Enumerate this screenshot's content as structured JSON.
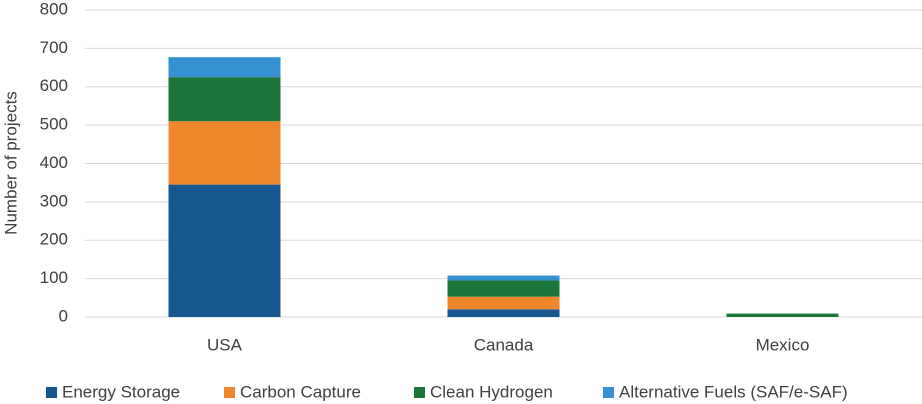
{
  "chart_data": {
    "type": "stacked-bar",
    "y_label": "Number of projects",
    "categories": [
      "USA",
      "Canada",
      "Mexico"
    ],
    "series": [
      {
        "name": "Energy Storage",
        "color": "#17578f",
        "values": [
          345,
          20,
          0
        ]
      },
      {
        "name": "Carbon Capture",
        "color": "#f0862b",
        "values": [
          165,
          33,
          0
        ]
      },
      {
        "name": "Clean Hydrogen",
        "color": "#1c7639",
        "values": [
          115,
          42,
          9
        ]
      },
      {
        "name": "Alternative Fuels (SAF/e-SAF)",
        "color": "#3591d2",
        "values": [
          52,
          13,
          0
        ]
      }
    ],
    "ylim": [
      0,
      800
    ],
    "yticks": [
      0,
      100,
      200,
      300,
      400,
      500,
      600,
      700,
      800
    ],
    "grid": true,
    "legend": "bottom"
  }
}
